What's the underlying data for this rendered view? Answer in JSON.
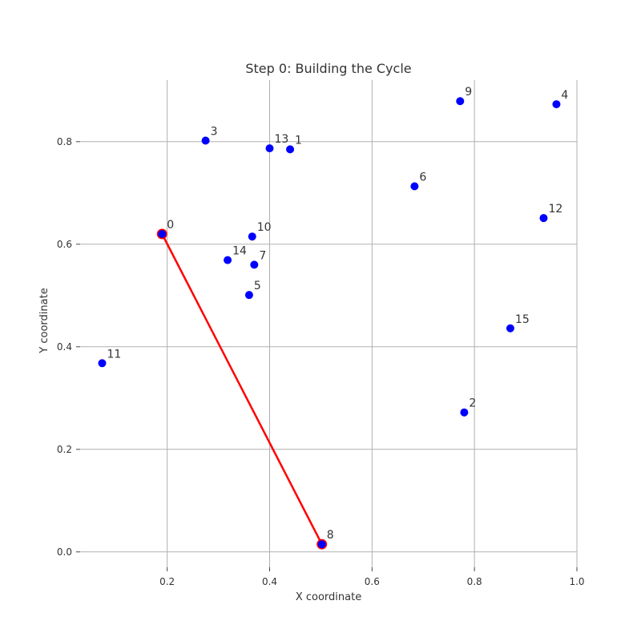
{
  "chart_data": {
    "type": "scatter",
    "title": "Step 0: Building the Cycle",
    "xlabel": "X coordinate",
    "ylabel": "Y coordinate",
    "xlim": [
      0.03,
      1.0
    ],
    "ylim": [
      -0.03,
      0.92
    ],
    "xticks": [
      "0.2",
      "0.4",
      "0.6",
      "0.8",
      "1.0"
    ],
    "yticks": [
      "0.0",
      "0.2",
      "0.4",
      "0.6",
      "0.8"
    ],
    "grid": true,
    "colors": {
      "points": "#0000ff",
      "path": "#ff0000",
      "text": "#333333",
      "grid": "#b0b0b0"
    },
    "points": [
      {
        "label": "0",
        "x": 0.19,
        "y": 0.62
      },
      {
        "label": "1",
        "x": 0.44,
        "y": 0.785
      },
      {
        "label": "2",
        "x": 0.78,
        "y": 0.272
      },
      {
        "label": "3",
        "x": 0.275,
        "y": 0.802
      },
      {
        "label": "4",
        "x": 0.96,
        "y": 0.873
      },
      {
        "label": "5",
        "x": 0.36,
        "y": 0.501
      },
      {
        "label": "6",
        "x": 0.683,
        "y": 0.713
      },
      {
        "label": "7",
        "x": 0.37,
        "y": 0.56
      },
      {
        "label": "8",
        "x": 0.502,
        "y": 0.015
      },
      {
        "label": "9",
        "x": 0.772,
        "y": 0.879
      },
      {
        "label": "10",
        "x": 0.366,
        "y": 0.615
      },
      {
        "label": "11",
        "x": 0.073,
        "y": 0.368
      },
      {
        "label": "12",
        "x": 0.935,
        "y": 0.651
      },
      {
        "label": "13",
        "x": 0.4,
        "y": 0.787
      },
      {
        "label": "14",
        "x": 0.318,
        "y": 0.569
      },
      {
        "label": "15",
        "x": 0.87,
        "y": 0.436
      }
    ],
    "path": [
      0,
      8
    ]
  }
}
